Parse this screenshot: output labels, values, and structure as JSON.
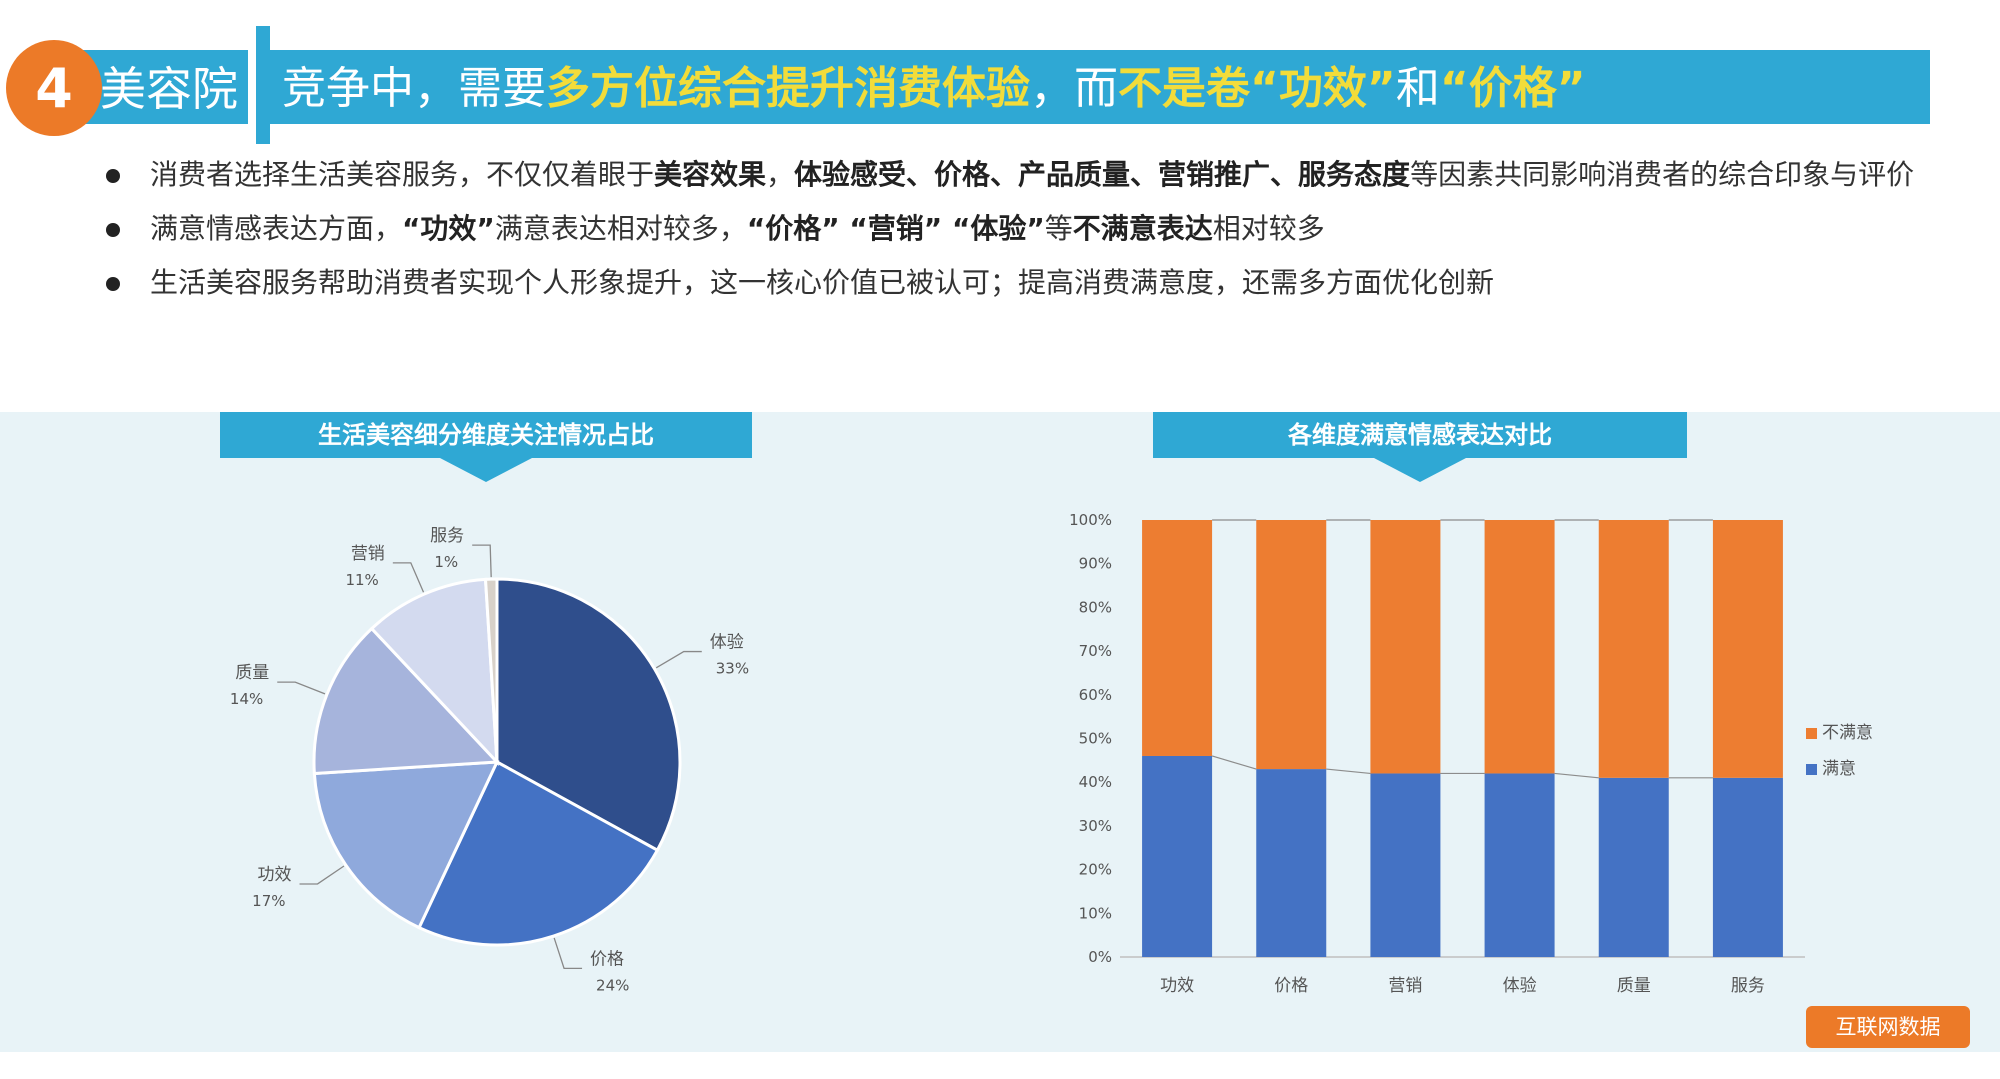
{
  "header": {
    "badge": "4",
    "section": "美容院",
    "headline_parts": [
      {
        "text": "竞争中，需要",
        "highlight": false
      },
      {
        "text": "多方位综合提升消费体验",
        "highlight": true
      },
      {
        "text": "，而",
        "highlight": false
      },
      {
        "text": "不是卷“功效”",
        "highlight": true
      },
      {
        "text": "和",
        "highlight": false
      },
      {
        "text": "“价格”",
        "highlight": true
      }
    ]
  },
  "bullets": [
    [
      {
        "t": "消费者选择生活美容服务，不仅仅着眼于",
        "b": false
      },
      {
        "t": "美容效果",
        "b": true
      },
      {
        "t": "，",
        "b": false
      },
      {
        "t": "体验感受、价格、产品质量、营销推广、服务态度",
        "b": true
      },
      {
        "t": "等因素共同影响消费者的综合印象与评价",
        "b": false
      }
    ],
    [
      {
        "t": "满意情感表达方面，",
        "b": false
      },
      {
        "t": "“功效”",
        "b": true
      },
      {
        "t": "满意表达相对较多，",
        "b": false
      },
      {
        "t": "“价格” “营销” “体验”",
        "b": true
      },
      {
        "t": "等",
        "b": false
      },
      {
        "t": "不满意表达",
        "b": true
      },
      {
        "t": "相对较多",
        "b": false
      }
    ],
    [
      {
        "t": "生活美容服务帮助消费者实现个人形象提升，这一核心价值已被认可；提高消费满意度，还需多方面优化创新",
        "b": false
      }
    ]
  ],
  "source_label": "互联网数据",
  "colors": {
    "accent": "#2fa8d4",
    "orange": "#ec7a28",
    "highlight": "#f2dc3a",
    "satisfied": "#4472c4",
    "unsatisfied": "#ed7d31"
  },
  "chart_data": [
    {
      "type": "pie",
      "title": "生活美容细分维度关注情况占比",
      "slices": [
        {
          "label": "体验",
          "value": 33,
          "display": "33%",
          "color": "#2f4e8c"
        },
        {
          "label": "价格",
          "value": 24,
          "display": "24%",
          "color": "#4472c4"
        },
        {
          "label": "功效",
          "value": 17,
          "display": "17%",
          "color": "#8fa9dc"
        },
        {
          "label": "质量",
          "value": 14,
          "display": "14%",
          "color": "#a6b4dc"
        },
        {
          "label": "营销",
          "value": 11,
          "display": "11%",
          "color": "#d3daef"
        },
        {
          "label": "服务",
          "value": 1,
          "display": "1%",
          "color": "#d8d1c9"
        }
      ]
    },
    {
      "type": "bar",
      "stacked": true,
      "percent": true,
      "title": "各维度满意情感表达对比",
      "categories": [
        "功效",
        "价格",
        "营销",
        "体验",
        "质量",
        "服务"
      ],
      "series": [
        {
          "name": "满意",
          "values": [
            46,
            43,
            42,
            42,
            41,
            41
          ],
          "color": "#4472c4"
        },
        {
          "name": "不满意",
          "values": [
            54,
            57,
            58,
            58,
            59,
            59
          ],
          "color": "#ed7d31"
        }
      ],
      "ylim": [
        0,
        100
      ],
      "yticks": [
        "0%",
        "10%",
        "20%",
        "30%",
        "40%",
        "50%",
        "60%",
        "70%",
        "80%",
        "90%",
        "100%"
      ],
      "legend_position": "right"
    }
  ]
}
